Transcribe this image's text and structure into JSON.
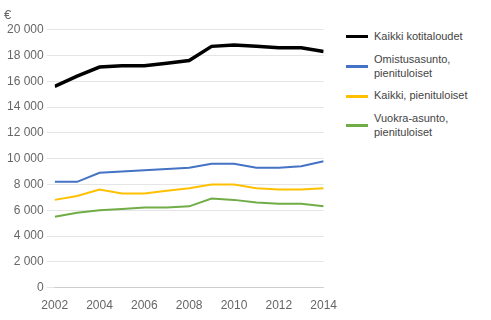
{
  "chart_data": {
    "type": "line",
    "ylabel": "€",
    "series": [
      {
        "name": "Kaikki kotitaloudet",
        "color": "#000000",
        "x": [
          2002,
          2003,
          2004,
          2005,
          2006,
          2007,
          2008,
          2009,
          2010,
          2011,
          2012,
          2013,
          2014
        ],
        "values": [
          15600,
          16400,
          17100,
          17200,
          17200,
          17400,
          17600,
          18700,
          18800,
          18700,
          18600,
          18600,
          18300
        ]
      },
      {
        "name": "Omistusasunto,\npienituloiset",
        "color": "#4472C4",
        "x": [
          2002,
          2003,
          2004,
          2005,
          2006,
          2007,
          2008,
          2009,
          2010,
          2011,
          2012,
          2013,
          2014
        ],
        "values": [
          8200,
          8200,
          8900,
          9000,
          9100,
          9200,
          9300,
          9600,
          9600,
          9300,
          9300,
          9400,
          9800
        ]
      },
      {
        "name": "Kaikki, pienituloiset",
        "color": "#FFC000",
        "x": [
          2002,
          2003,
          2004,
          2005,
          2006,
          2007,
          2008,
          2009,
          2010,
          2011,
          2012,
          2013,
          2014
        ],
        "values": [
          6800,
          7100,
          7600,
          7300,
          7300,
          7500,
          7700,
          8000,
          8000,
          7700,
          7600,
          7600,
          7700
        ]
      },
      {
        "name": "Vuokra-asunto,\npienituloiset",
        "color": "#70AD47",
        "x": [
          2002,
          2003,
          2004,
          2005,
          2006,
          2007,
          2008,
          2009,
          2010,
          2011,
          2012,
          2013,
          2014
        ],
        "values": [
          5500,
          5800,
          6000,
          6100,
          6200,
          6200,
          6300,
          6900,
          6800,
          6600,
          6500,
          6500,
          6300
        ]
      }
    ],
    "xlim": [
      2002,
      2014
    ],
    "xticks": [
      2002,
      2004,
      2006,
      2008,
      2010,
      2012,
      2014
    ],
    "ylim": [
      0,
      20000
    ],
    "yticks": [
      0,
      {
        "value": 2000,
        "label": "2 000"
      },
      {
        "value": 4000,
        "label": "4 000"
      },
      {
        "value": 6000,
        "label": "6 000"
      },
      {
        "value": 8000,
        "label": "8 000"
      },
      {
        "value": 10000,
        "label": "10 000"
      },
      {
        "value": 12000,
        "label": "12 000"
      },
      {
        "value": 14000,
        "label": "14 000"
      },
      {
        "value": 16000,
        "label": "16 000"
      },
      {
        "value": 18000,
        "label": "18 000"
      },
      {
        "value": 20000,
        "label": "20 000"
      }
    ],
    "grid": true,
    "legend": "right"
  }
}
